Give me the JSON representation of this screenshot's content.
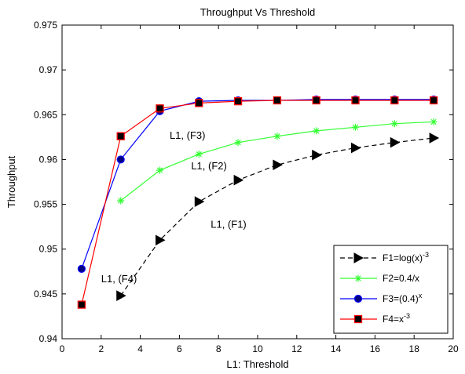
{
  "chart_data": {
    "type": "line",
    "title": "Throughput Vs Threshold",
    "xlabel": "L1: Threshold",
    "ylabel": "Throughput",
    "xlim": [
      0,
      20
    ],
    "ylim": [
      0.94,
      0.975
    ],
    "x_ticks": [
      0,
      2,
      4,
      6,
      8,
      10,
      12,
      14,
      16,
      18,
      20
    ],
    "y_ticks": [
      0.94,
      0.945,
      0.95,
      0.955,
      0.96,
      0.965,
      0.97,
      0.975
    ],
    "y_tick_labels": [
      "0.94",
      "0.945",
      "0.95",
      "0.955",
      "0.96",
      "0.965",
      "0.97",
      "0.975"
    ],
    "grid": false,
    "legend_position": "bottom-right",
    "series": [
      {
        "name": "F1=log(x)",
        "name_superscript": "-3",
        "color": "#000000",
        "line_style": "dashed",
        "marker": "triangle-right",
        "x": [
          3,
          5,
          7,
          9,
          11,
          13,
          15,
          17,
          19
        ],
        "y": [
          0.9448,
          0.951,
          0.9553,
          0.9577,
          0.9594,
          0.9605,
          0.9613,
          0.9619,
          0.9624
        ]
      },
      {
        "name": "F2=0.4/x",
        "name_superscript": "",
        "color": "#33ff33",
        "line_style": "solid",
        "marker": "asterisk",
        "x": [
          3,
          5,
          7,
          9,
          11,
          13,
          15,
          17,
          19
        ],
        "y": [
          0.9554,
          0.9588,
          0.9606,
          0.9619,
          0.9626,
          0.9632,
          0.9636,
          0.964,
          0.9642
        ]
      },
      {
        "name": "F3=(0.4)",
        "name_superscript": "x",
        "color": "#0000ff",
        "line_style": "solid",
        "marker": "circle",
        "x": [
          1,
          3,
          5,
          7,
          9,
          11,
          13,
          15,
          17,
          19
        ],
        "y": [
          0.9478,
          0.96,
          0.9654,
          0.9665,
          0.9666,
          0.9666,
          0.9667,
          0.9667,
          0.9667,
          0.9667
        ]
      },
      {
        "name": "F4=x",
        "name_superscript": "-3",
        "color": "#ff0000",
        "line_style": "solid",
        "marker": "square",
        "x": [
          1,
          3,
          5,
          7,
          9,
          11,
          13,
          15,
          17,
          19
        ],
        "y": [
          0.9438,
          0.9626,
          0.9657,
          0.9663,
          0.9665,
          0.9666,
          0.9666,
          0.9666,
          0.9666,
          0.9666
        ]
      }
    ],
    "annotations": [
      {
        "text": "L1, (F3)",
        "x": 5.5,
        "y": 0.9623
      },
      {
        "text": "L1, (F2)",
        "x": 6.6,
        "y": 0.9589
      },
      {
        "text": "L1, (F1)",
        "x": 7.6,
        "y": 0.9524
      },
      {
        "text": "L1, (F4)",
        "x": 2.0,
        "y": 0.9463
      }
    ]
  }
}
